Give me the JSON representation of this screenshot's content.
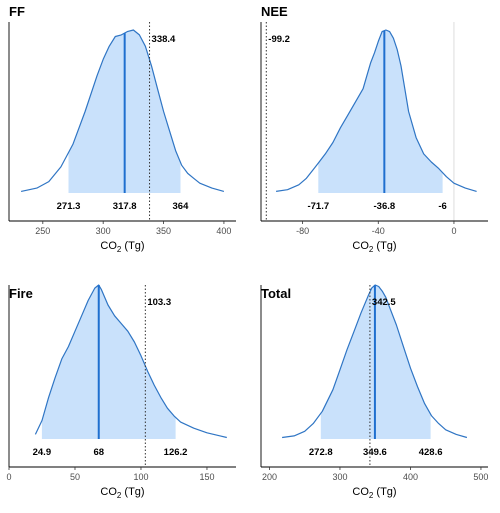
{
  "colors": {
    "curve": "#2f75c4",
    "fill": "#c9e1fb",
    "median": "#1f6fcf",
    "ref_line": "#333333",
    "zero_line": "#dddddd"
  },
  "chart_data": [
    {
      "type": "area",
      "title": "FF",
      "xlabel_main": "CO",
      "xlabel_sub": "2",
      "xlabel_unit": " (Tg)",
      "xlim": [
        222,
        410
      ],
      "xticks": [
        250,
        300,
        350,
        400
      ],
      "interval": [
        271.3,
        364
      ],
      "median": 317.8,
      "reference": 338.4,
      "zero_line": null,
      "labels": {
        "lower": "271.3",
        "median": "317.8",
        "upper": "364",
        "reference": "338.4"
      },
      "density": [
        [
          232,
          0.01
        ],
        [
          245,
          0.03
        ],
        [
          255,
          0.07
        ],
        [
          265,
          0.16
        ],
        [
          275,
          0.3
        ],
        [
          285,
          0.5
        ],
        [
          295,
          0.72
        ],
        [
          300,
          0.82
        ],
        [
          305,
          0.9
        ],
        [
          310,
          0.96
        ],
        [
          315,
          0.97
        ],
        [
          320,
          0.99
        ],
        [
          325,
          1.0
        ],
        [
          330,
          0.97
        ],
        [
          335,
          0.9
        ],
        [
          340,
          0.78
        ],
        [
          345,
          0.64
        ],
        [
          350,
          0.5
        ],
        [
          355,
          0.38
        ],
        [
          360,
          0.26
        ],
        [
          365,
          0.17
        ],
        [
          370,
          0.12
        ],
        [
          375,
          0.09
        ],
        [
          380,
          0.06
        ],
        [
          390,
          0.03
        ],
        [
          400,
          0.01
        ]
      ]
    },
    {
      "type": "area",
      "title": "NEE",
      "xlabel_main": "CO",
      "xlabel_sub": "2",
      "xlabel_unit": " (Tg)",
      "xlim": [
        -102,
        18
      ],
      "xticks": [
        -80,
        -40,
        0
      ],
      "interval": [
        -71.7,
        -6
      ],
      "median": -36.8,
      "reference": -99.2,
      "zero_line": 0,
      "labels": {
        "lower": "-71.7",
        "median": "-36.8",
        "upper": "-6",
        "reference": "-99.2"
      },
      "density": [
        [
          -94,
          0.01
        ],
        [
          -88,
          0.02
        ],
        [
          -82,
          0.05
        ],
        [
          -78,
          0.09
        ],
        [
          -74,
          0.15
        ],
        [
          -72,
          0.18
        ],
        [
          -68,
          0.24
        ],
        [
          -64,
          0.31
        ],
        [
          -60,
          0.4
        ],
        [
          -56,
          0.48
        ],
        [
          -52,
          0.56
        ],
        [
          -48,
          0.64
        ],
        [
          -46,
          0.72
        ],
        [
          -44,
          0.8
        ],
        [
          -42,
          0.86
        ],
        [
          -40,
          0.93
        ],
        [
          -38,
          0.99
        ],
        [
          -36,
          1.0
        ],
        [
          -34,
          0.99
        ],
        [
          -32,
          0.95
        ],
        [
          -30,
          0.88
        ],
        [
          -28,
          0.78
        ],
        [
          -26,
          0.64
        ],
        [
          -24,
          0.5
        ],
        [
          -20,
          0.34
        ],
        [
          -16,
          0.24
        ],
        [
          -12,
          0.19
        ],
        [
          -8,
          0.15
        ],
        [
          -4,
          0.1
        ],
        [
          0,
          0.06
        ],
        [
          6,
          0.03
        ],
        [
          12,
          0.01
        ]
      ]
    },
    {
      "type": "area",
      "title": "Fire",
      "xlabel_main": "CO",
      "xlabel_sub": "2",
      "xlabel_unit": " (Tg)",
      "xlim": [
        0,
        172
      ],
      "xticks": [
        0,
        50,
        100,
        150
      ],
      "interval": [
        24.9,
        126.2
      ],
      "median": 68,
      "reference": 103.3,
      "zero_line": null,
      "labels": {
        "lower": "24.9",
        "median": "68",
        "upper": "126.2",
        "reference": "103.3"
      },
      "density": [
        [
          20,
          0.03
        ],
        [
          25,
          0.12
        ],
        [
          30,
          0.27
        ],
        [
          35,
          0.4
        ],
        [
          40,
          0.52
        ],
        [
          45,
          0.6
        ],
        [
          50,
          0.7
        ],
        [
          55,
          0.8
        ],
        [
          60,
          0.9
        ],
        [
          65,
          0.98
        ],
        [
          68,
          1.0
        ],
        [
          70,
          0.97
        ],
        [
          75,
          0.87
        ],
        [
          80,
          0.8
        ],
        [
          85,
          0.75
        ],
        [
          90,
          0.7
        ],
        [
          95,
          0.63
        ],
        [
          100,
          0.54
        ],
        [
          105,
          0.44
        ],
        [
          110,
          0.35
        ],
        [
          115,
          0.27
        ],
        [
          120,
          0.2
        ],
        [
          125,
          0.15
        ],
        [
          130,
          0.11
        ],
        [
          140,
          0.07
        ],
        [
          150,
          0.04
        ],
        [
          160,
          0.02
        ],
        [
          165,
          0.01
        ]
      ]
    },
    {
      "type": "area",
      "title": "Total",
      "xlabel_main": "CO",
      "xlabel_sub": "2",
      "xlabel_unit": " (Tg)",
      "xlim": [
        188,
        510
      ],
      "xticks": [
        200,
        300,
        400,
        500
      ],
      "interval": [
        272.8,
        428.6
      ],
      "median": 349.6,
      "reference": 342.5,
      "zero_line": null,
      "labels": {
        "lower": "272.8",
        "median": "349.6",
        "upper": "428.6",
        "reference": "342.5"
      },
      "density": [
        [
          218,
          0.01
        ],
        [
          235,
          0.02
        ],
        [
          250,
          0.05
        ],
        [
          262,
          0.1
        ],
        [
          275,
          0.18
        ],
        [
          290,
          0.32
        ],
        [
          300,
          0.45
        ],
        [
          310,
          0.58
        ],
        [
          320,
          0.7
        ],
        [
          330,
          0.82
        ],
        [
          340,
          0.93
        ],
        [
          345,
          0.98
        ],
        [
          350,
          1.0
        ],
        [
          355,
          0.99
        ],
        [
          360,
          0.96
        ],
        [
          365,
          0.92
        ],
        [
          370,
          0.86
        ],
        [
          380,
          0.74
        ],
        [
          390,
          0.6
        ],
        [
          400,
          0.46
        ],
        [
          410,
          0.34
        ],
        [
          420,
          0.23
        ],
        [
          430,
          0.15
        ],
        [
          440,
          0.1
        ],
        [
          450,
          0.06
        ],
        [
          465,
          0.03
        ],
        [
          480,
          0.01
        ]
      ]
    }
  ]
}
